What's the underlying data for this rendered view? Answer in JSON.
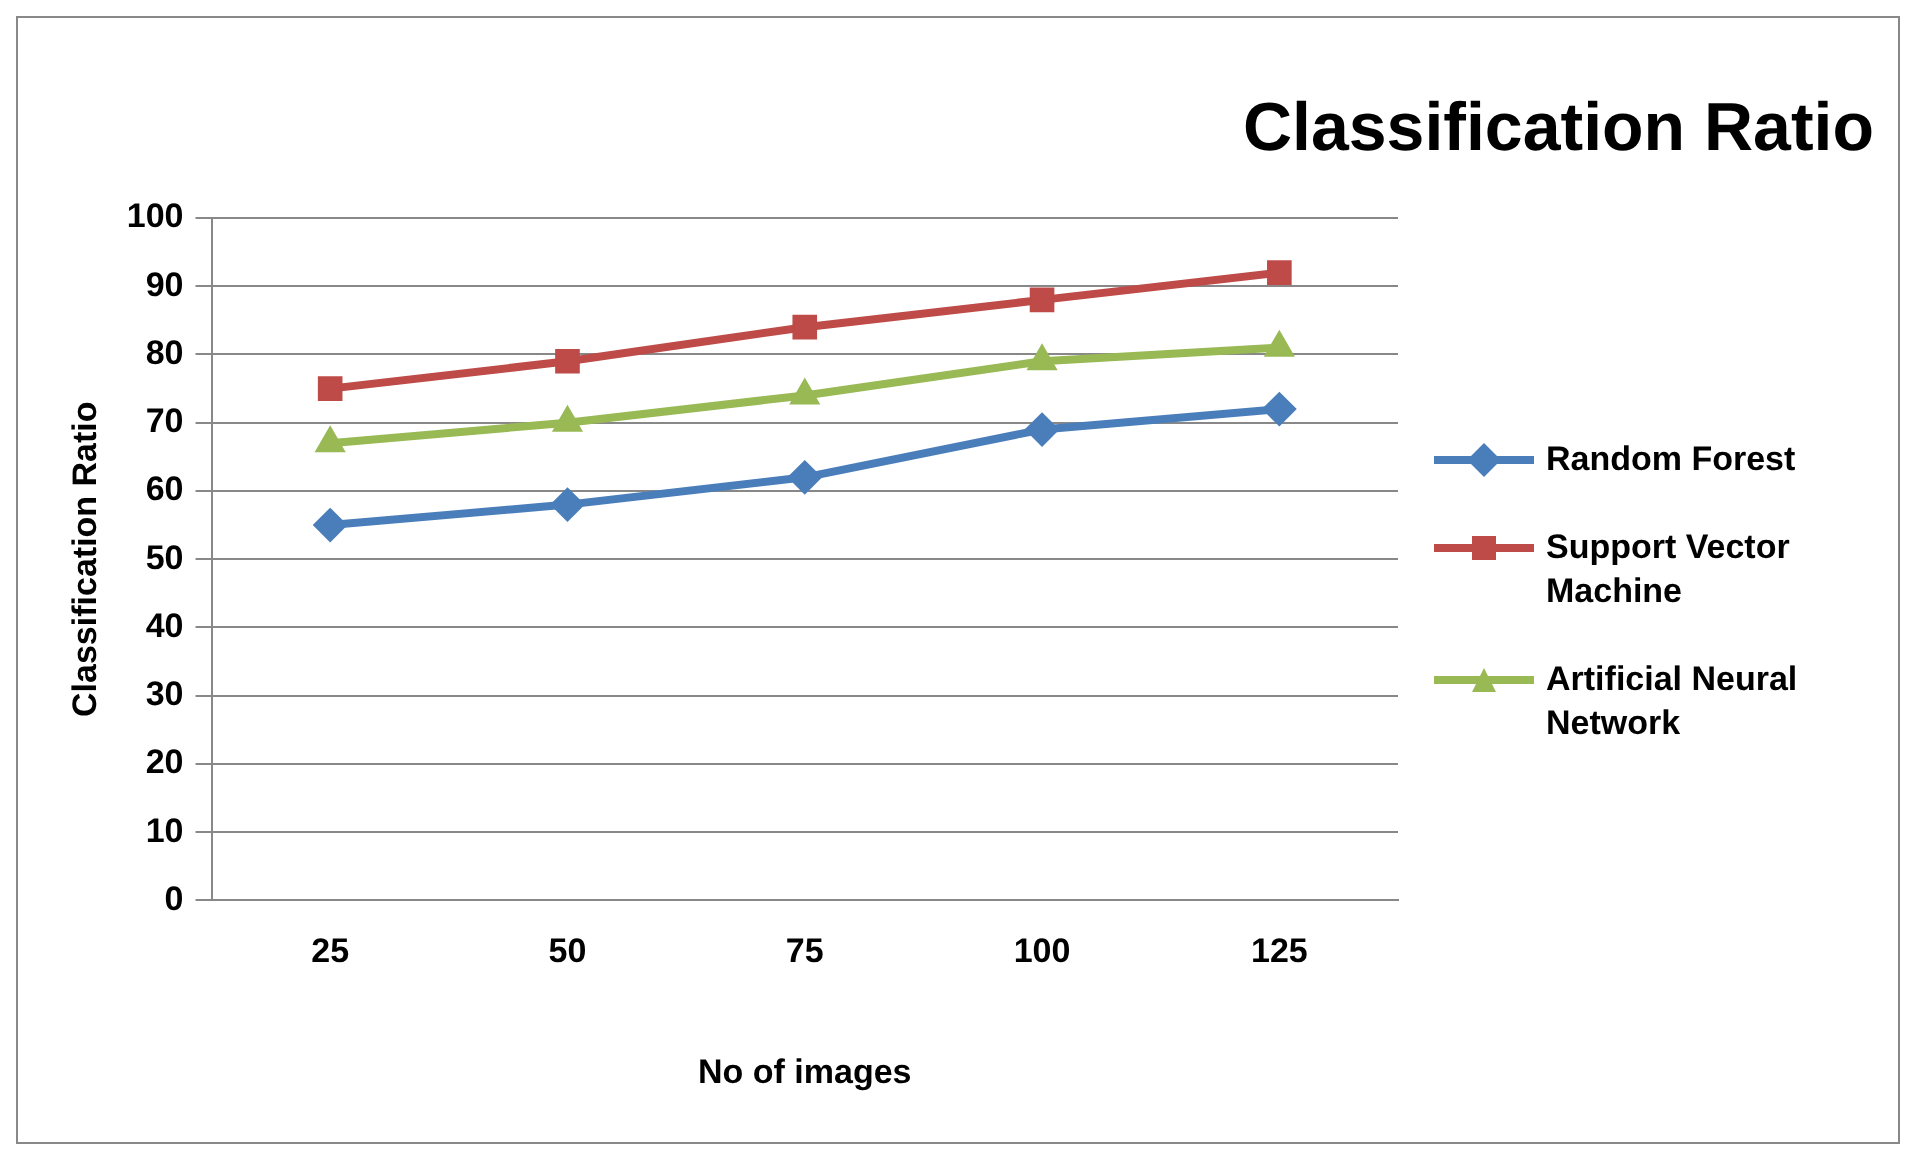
{
  "chart_data": {
    "type": "line",
    "title": "Classification Ratio",
    "xlabel": "No of images",
    "ylabel": "Classification Ratio",
    "categories": [
      "25",
      "50",
      "75",
      "100",
      "125"
    ],
    "series": [
      {
        "name": "Random Forest",
        "color": "#4a7ebb",
        "values": [
          55,
          58,
          62,
          69,
          72
        ],
        "marker": "diamond"
      },
      {
        "name": "Support Vector Machine",
        "color": "#be4b48",
        "values": [
          75,
          79,
          84,
          88,
          92
        ],
        "marker": "square"
      },
      {
        "name": "Artificial Neural Network",
        "color": "#98b954",
        "values": [
          67,
          70,
          74,
          79,
          81
        ],
        "marker": "triangle"
      }
    ],
    "ylim": [
      0,
      100
    ],
    "yticks": [
      0,
      10,
      20,
      30,
      40,
      50,
      60,
      70,
      80,
      90,
      100
    ],
    "grid": "y",
    "legend": "right",
    "line_style": "solid"
  }
}
